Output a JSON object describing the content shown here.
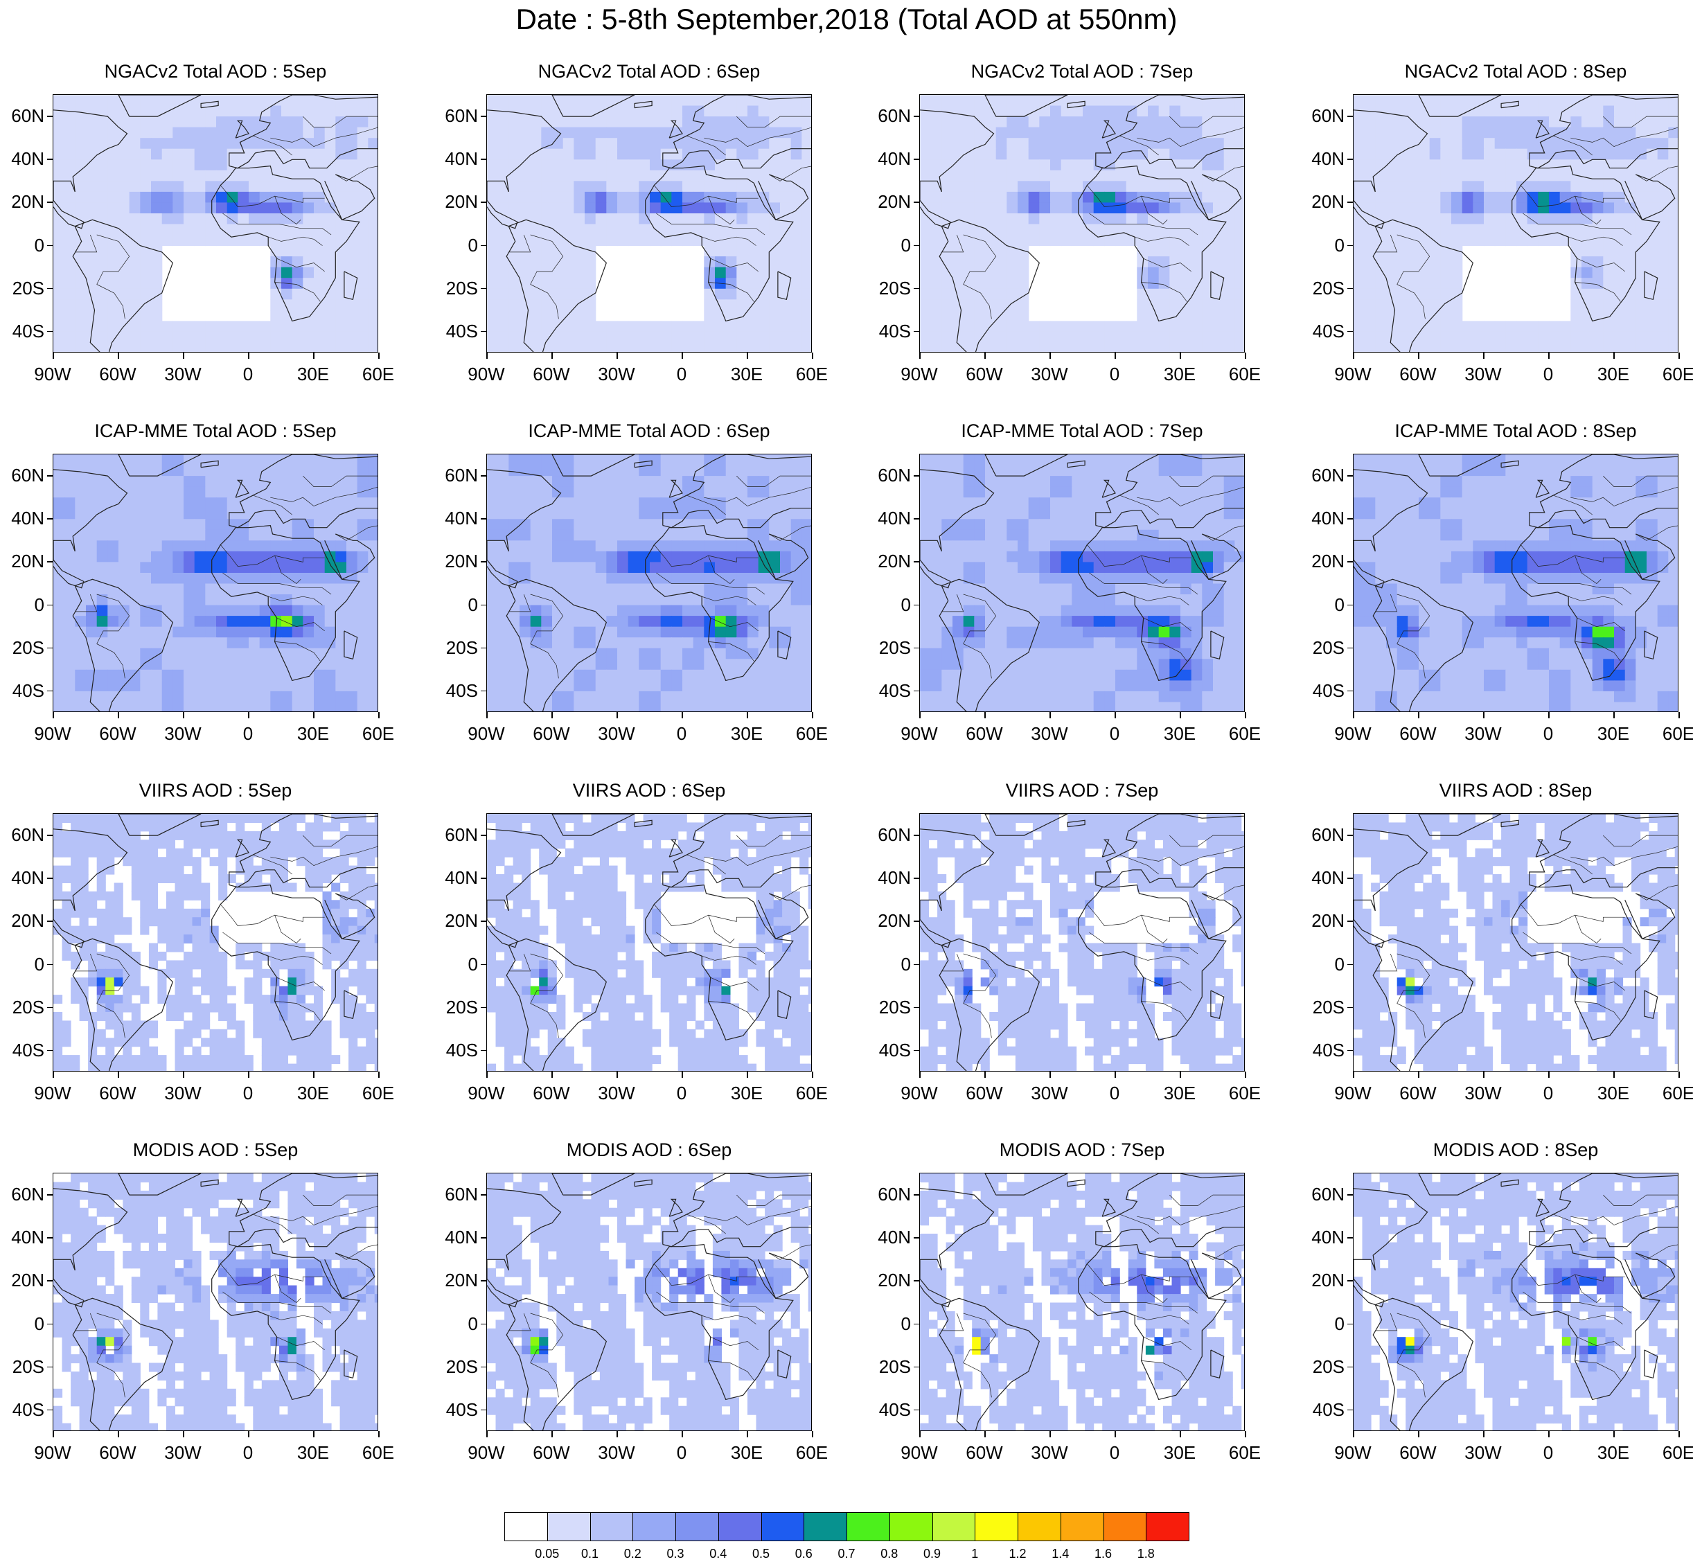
{
  "title": "Date : 5-8th September,2018 (Total AOD at 550nm)",
  "rows": [
    {
      "id": "ngac",
      "style": "model",
      "titles": [
        "NGACv2 Total AOD : 5Sep",
        "NGACv2 Total AOD : 6Sep",
        "NGACv2 Total AOD : 7Sep",
        "NGACv2 Total AOD : 8Sep"
      ]
    },
    {
      "id": "icap",
      "style": "ensemble",
      "titles": [
        "ICAP-MME Total AOD : 5Sep",
        "ICAP-MME Total AOD : 6Sep",
        "ICAP-MME Total AOD : 7Sep",
        "ICAP-MME Total AOD : 8Sep"
      ]
    },
    {
      "id": "viirs",
      "style": "satellite",
      "titles": [
        "VIIRS AOD : 5Sep",
        "VIIRS AOD : 6Sep",
        "VIIRS AOD : 7Sep",
        "VIIRS AOD : 8Sep"
      ]
    },
    {
      "id": "modis",
      "style": "satellite",
      "titles": [
        "MODIS AOD : 5Sep",
        "MODIS AOD : 6Sep",
        "MODIS AOD : 7Sep",
        "MODIS AOD : 8Sep"
      ]
    }
  ],
  "lat_labels": [
    "60N",
    "40N",
    "20N",
    "0",
    "20S",
    "40S"
  ],
  "lon_labels": [
    "90W",
    "60W",
    "30W",
    "0",
    "30E",
    "60E"
  ],
  "lon_range": [
    -90,
    60
  ],
  "lat_range": [
    -50,
    70
  ],
  "colorbar": {
    "labels": [
      "0.05",
      "0.1",
      "0.2",
      "0.3",
      "0.4",
      "0.5",
      "0.6",
      "0.7",
      "0.8",
      "0.9",
      "1",
      "1.2",
      "1.4",
      "1.6",
      "1.8"
    ],
    "colors": [
      "#ffffff",
      "#d6dcfb",
      "#b6c2f8",
      "#96a9f5",
      "#7f93f1",
      "#6671ea",
      "#1e5cf0",
      "#07928f",
      "#4cf01c",
      "#8cf70f",
      "#c3f83f",
      "#fcfc0e",
      "#fcc701",
      "#fca80d",
      "#fb7e0b",
      "#f71d0c"
    ]
  }
}
